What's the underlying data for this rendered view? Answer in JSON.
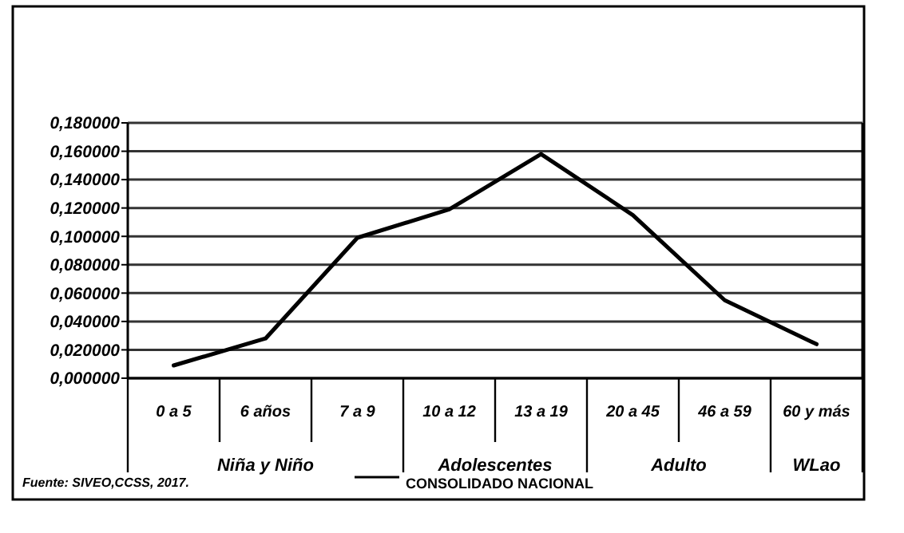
{
  "chart_data": {
    "type": "line",
    "categories": [
      "0 a 5",
      "6 años",
      "7 a 9",
      "10 a 12",
      "13 a 19",
      "20 a 45",
      "46 a 59",
      "60 y más"
    ],
    "series": [
      {
        "name": "CONSOLIDADO NACIONAL",
        "color": "#000000",
        "values": [
          0.009,
          0.028,
          0.099,
          0.119,
          0.158,
          0.115,
          0.055,
          0.024
        ]
      }
    ],
    "ylim": [
      0,
      0.18
    ],
    "yticks": [
      {
        "value": 0,
        "label": "0,000000"
      },
      {
        "value": 0.02,
        "label": "0,020000"
      },
      {
        "value": 0.04,
        "label": "0,040000"
      },
      {
        "value": 0.06,
        "label": "0,060000"
      },
      {
        "value": 0.08,
        "label": "0,080000"
      },
      {
        "value": 0.1,
        "label": "0,100000"
      },
      {
        "value": 0.12,
        "label": "0,120000"
      },
      {
        "value": 0.14,
        "label": "0,140000"
      },
      {
        "value": 0.16,
        "label": "0,160000"
      },
      {
        "value": 0.18,
        "label": "0,180000"
      }
    ],
    "grid": "y",
    "legend": "bottom",
    "marker": "none",
    "line_style": "solid",
    "annotations": [
      "Niña y Niño",
      "Adolescentes",
      "Adulto",
      "WLao",
      "Fuente: SIVEO,CCSS, 2017."
    ]
  }
}
